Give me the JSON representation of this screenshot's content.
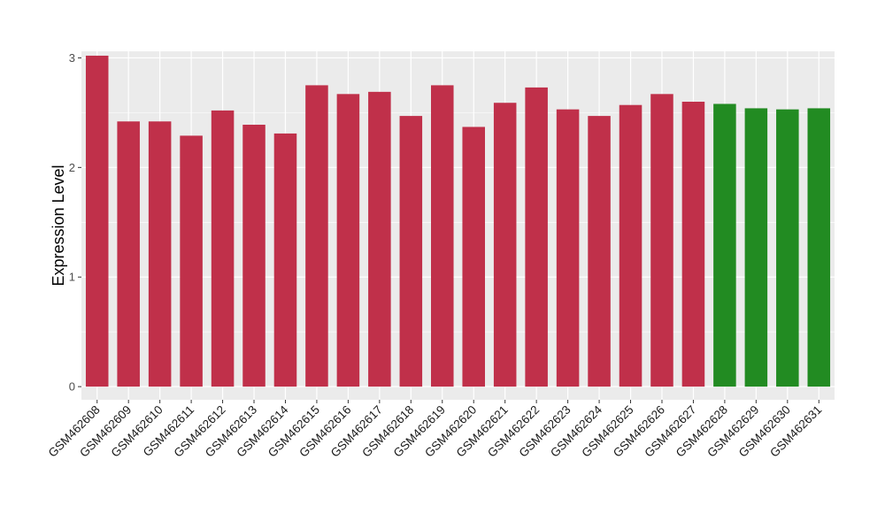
{
  "chart_data": {
    "type": "bar",
    "title": "",
    "xlabel": "",
    "ylabel": "Expression Level",
    "ylim": [
      -0.12,
      3.06
    ],
    "yticks": [
      0,
      1,
      2,
      3
    ],
    "grid": true,
    "categories": [
      "GSM462608",
      "GSM462609",
      "GSM462610",
      "GSM462611",
      "GSM462612",
      "GSM462613",
      "GSM462614",
      "GSM462615",
      "GSM462616",
      "GSM462617",
      "GSM462618",
      "GSM462619",
      "GSM462620",
      "GSM462621",
      "GSM462622",
      "GSM462623",
      "GSM462624",
      "GSM462625",
      "GSM462626",
      "GSM462627",
      "GSM462628",
      "GSM462629",
      "GSM462630",
      "GSM462631"
    ],
    "values": [
      3.02,
      2.42,
      2.42,
      2.29,
      2.52,
      2.39,
      2.31,
      2.75,
      2.67,
      2.69,
      2.47,
      2.75,
      2.37,
      2.59,
      2.73,
      2.53,
      2.47,
      2.57,
      2.67,
      2.6,
      2.58,
      2.54,
      2.53,
      2.54
    ],
    "bar_colors": [
      "#c0304a",
      "#c0304a",
      "#c0304a",
      "#c0304a",
      "#c0304a",
      "#c0304a",
      "#c0304a",
      "#c0304a",
      "#c0304a",
      "#c0304a",
      "#c0304a",
      "#c0304a",
      "#c0304a",
      "#c0304a",
      "#c0304a",
      "#c0304a",
      "#c0304a",
      "#c0304a",
      "#c0304a",
      "#c0304a",
      "#228b22",
      "#228b22",
      "#228b22",
      "#228b22"
    ],
    "panel_background": "#ebebeb",
    "grid_color": "#ffffff"
  }
}
